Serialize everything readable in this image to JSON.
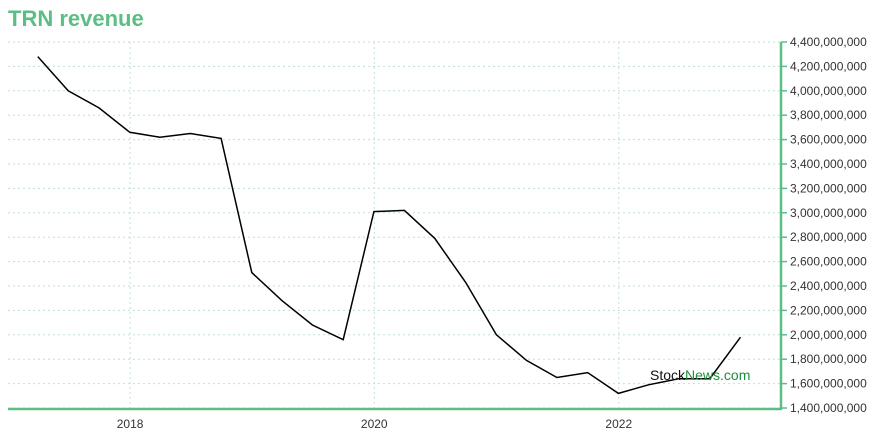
{
  "chart_data": {
    "type": "line",
    "title": "TRN revenue",
    "x": [
      "2017-03-31",
      "2017-06-30",
      "2017-09-30",
      "2017-12-31",
      "2018-03-31",
      "2018-06-30",
      "2018-09-30",
      "2018-12-31",
      "2019-03-31",
      "2019-06-30",
      "2019-09-30",
      "2019-12-31",
      "2020-03-31",
      "2020-06-30",
      "2020-09-30",
      "2020-12-31",
      "2021-03-31",
      "2021-06-30",
      "2021-09-30",
      "2021-12-31",
      "2022-03-31",
      "2022-06-30",
      "2022-09-30",
      "2022-12-31"
    ],
    "series": [
      {
        "name": "",
        "values": [
          4280000000,
          4000000000,
          3860000000,
          3660000000,
          3620000000,
          3650000000,
          3610000000,
          2510000000,
          2280000000,
          2080000000,
          1960000000,
          3010000000,
          3020000000,
          2790000000,
          2430000000,
          2000000000,
          1790000000,
          1650000000,
          1690000000,
          1520000000,
          1590000000,
          1640000000,
          1640000000,
          1980000000
        ]
      }
    ],
    "xticks": [
      "2018",
      "2020",
      "2022"
    ],
    "ylim": [
      1400000000,
      4400000000
    ],
    "yticks": [
      "1,400,000,000",
      "1,600,000,000",
      "1,800,000,000",
      "2,000,000,000",
      "2,200,000,000",
      "2,400,000,000",
      "2,600,000,000",
      "2,800,000,000",
      "3,000,000,000",
      "3,200,000,000",
      "3,400,000,000",
      "3,600,000,000",
      "3,800,000,000",
      "4,000,000,000",
      "4,200,000,000",
      "4,400,000,000"
    ],
    "grid": true,
    "y_axis_side": "right",
    "colors": {
      "line": "#000000",
      "title": "#5bbf85",
      "axis": "#5bbf85",
      "grid": "#bfe3cf"
    }
  },
  "watermark": {
    "part1": "Stock",
    "part2": "News.com"
  }
}
